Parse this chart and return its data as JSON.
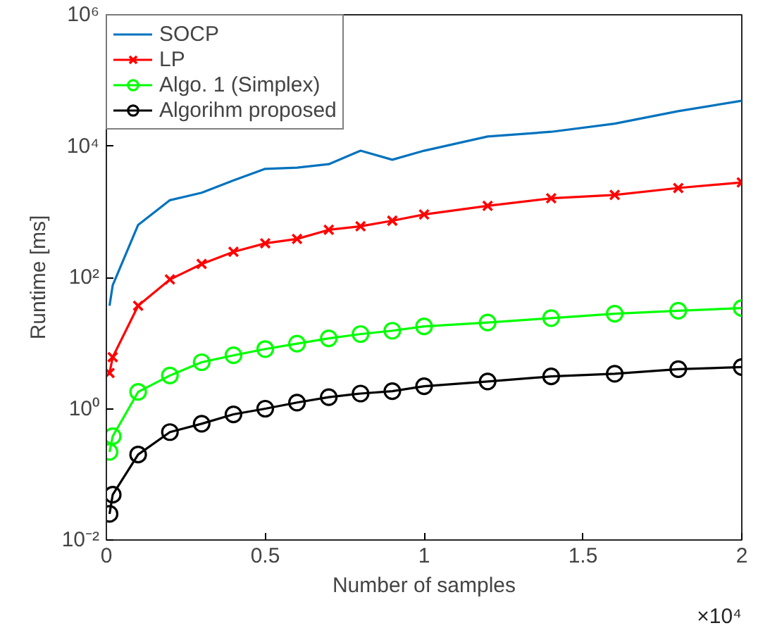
{
  "chart_data": {
    "type": "line",
    "xlabel": "Number of samples",
    "ylabel": "Runtime [ms]",
    "x": [
      0.01,
      0.02,
      0.1,
      0.2,
      0.3,
      0.4,
      0.5,
      0.6,
      0.7,
      0.8,
      0.9,
      1.0,
      1.2,
      1.4,
      1.6,
      1.8,
      2.0
    ],
    "series": [
      {
        "name": "SOCP",
        "color": "#0072bd",
        "marker": "none",
        "values": [
          37,
          76,
          630,
          1500,
          1950,
          3000,
          4500,
          4700,
          5300,
          8500,
          6200,
          8500,
          14000,
          16500,
          22000,
          34000,
          49000
        ]
      },
      {
        "name": "LP",
        "color": "#ff0000",
        "marker": "cross",
        "values": [
          3.5,
          6.1,
          37,
          93,
          160,
          245,
          330,
          385,
          530,
          600,
          730,
          910,
          1230,
          1600,
          1800,
          2300,
          2800
        ]
      },
      {
        "name": "Algo. 1 (Simplex)",
        "color": "#00ff00",
        "marker": "circle",
        "values": [
          0.22,
          0.38,
          1.8,
          3.2,
          5.1,
          6.5,
          8.1,
          9.8,
          11.8,
          13.7,
          15.4,
          17.9,
          20.5,
          24,
          28,
          31,
          34
        ]
      },
      {
        "name": "Algorihm proposed",
        "color": "#000000",
        "marker": "circle",
        "values": [
          0.025,
          0.049,
          0.2,
          0.44,
          0.59,
          0.82,
          1.0,
          1.24,
          1.5,
          1.7,
          1.85,
          2.2,
          2.6,
          3.1,
          3.4,
          4.0,
          4.3
        ]
      }
    ],
    "xlim": [
      0,
      2
    ],
    "xticks": [
      0,
      0.5,
      1,
      1.5,
      2
    ],
    "ylim": [
      0.01,
      1000000
    ],
    "yticks": [
      {
        "value": 0.01,
        "label": "10⁻²"
      },
      {
        "value": 1,
        "label": "10⁰"
      },
      {
        "value": 100,
        "label": "10²"
      },
      {
        "value": 10000,
        "label": "10⁴"
      },
      {
        "value": 1000000,
        "label": "10⁶"
      }
    ],
    "log": "y",
    "grid": false,
    "legend": "top left",
    "line_style": "solid",
    "annotations": [
      "×10⁴"
    ]
  }
}
